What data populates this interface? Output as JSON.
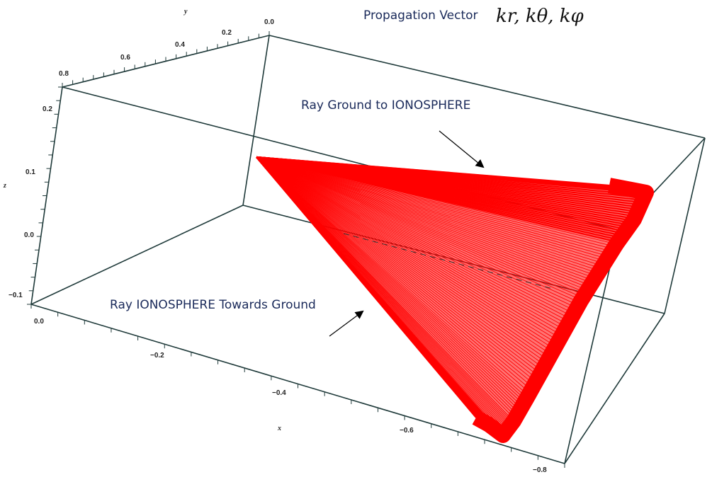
{
  "chart_data": {
    "type": "line",
    "title": "Propagation Vector",
    "title_math": "kr, kθ, kφ",
    "xlabel": "x",
    "ylabel": "y",
    "zlabel": "z",
    "x_ticks": [
      "0.0",
      "−0.2",
      "−0.4",
      "−0.6",
      "−0.8"
    ],
    "y_ticks": [
      "0.0",
      "0.2",
      "0.4",
      "0.6",
      "0.8"
    ],
    "z_ticks": [
      "−0.1",
      "0.0",
      "0.1",
      "0.2"
    ],
    "xlim": [
      0,
      -0.85
    ],
    "ylim": [
      0,
      0.85
    ],
    "zlim": [
      -0.12,
      0.24
    ],
    "series": [
      {
        "color": "#ff0000",
        "values": []
      }
    ],
    "annotations": [
      {
        "text": "Ray Ground to IONOSPHERE"
      },
      {
        "text": "Ray IONOSPHERE Towards Ground"
      }
    ]
  }
}
